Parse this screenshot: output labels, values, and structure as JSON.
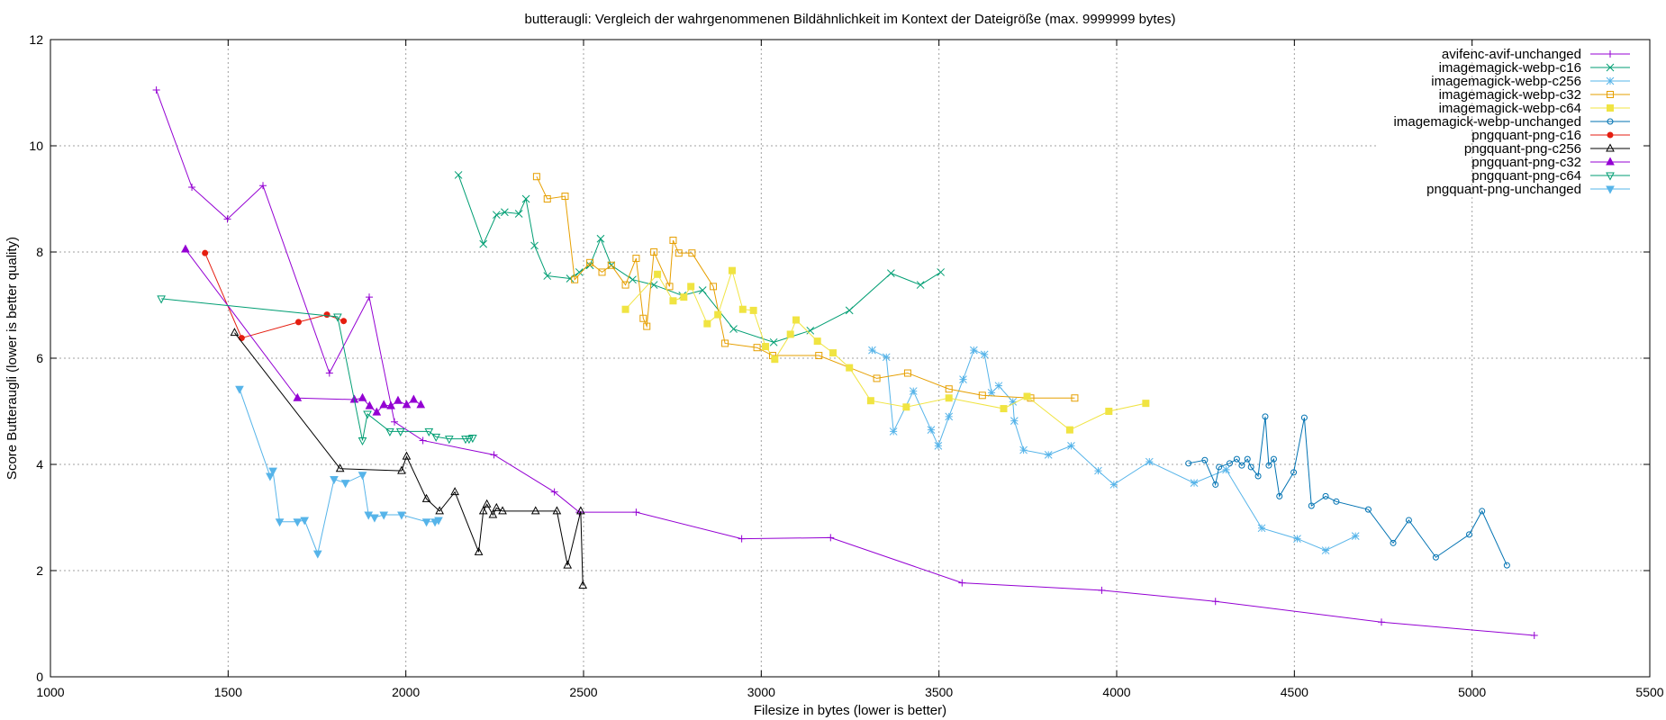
{
  "chart_data": {
    "type": "line",
    "title": "butteraugli: Vergleich der wahrgenommenen Bildähnlichkeit im Kontext der Dateigröße (max. 9999999 bytes)",
    "xlabel": "Filesize in bytes (lower is better)",
    "ylabel": "Score Butteraugli (lower is better quality)",
    "xlim": [
      1000,
      5500
    ],
    "ylim": [
      0,
      12
    ],
    "xticks": [
      1000,
      1500,
      2000,
      2500,
      3000,
      3500,
      4000,
      4500,
      5000,
      5500
    ],
    "yticks": [
      0,
      2,
      4,
      6,
      8,
      10,
      12
    ],
    "grid": true,
    "legend_position": "top-right",
    "series": [
      {
        "name": "avifenc-avif-unchanged",
        "color": "#9400d3",
        "marker": "plus",
        "points": [
          [
            1298,
            11.05
          ],
          [
            1398,
            9.22
          ],
          [
            1498,
            8.62
          ],
          [
            1598,
            9.25
          ],
          [
            1785,
            5.72
          ],
          [
            1897,
            7.15
          ],
          [
            1968,
            4.8
          ],
          [
            2048,
            4.45
          ],
          [
            2248,
            4.18
          ],
          [
            2418,
            3.48
          ],
          [
            2488,
            3.1
          ],
          [
            2648,
            3.1
          ],
          [
            2945,
            2.6
          ],
          [
            3195,
            2.62
          ],
          [
            3565,
            1.77
          ],
          [
            3958,
            1.63
          ],
          [
            4278,
            1.42
          ],
          [
            4745,
            1.03
          ],
          [
            5175,
            0.78
          ]
        ]
      },
      {
        "name": "imagemagick-webp-c16",
        "color": "#009e73",
        "marker": "x",
        "points": [
          [
            2148,
            9.45
          ],
          [
            2218,
            8.15
          ],
          [
            2255,
            8.7
          ],
          [
            2278,
            8.75
          ],
          [
            2318,
            8.72
          ],
          [
            2338,
            9.0
          ],
          [
            2362,
            8.12
          ],
          [
            2398,
            7.55
          ],
          [
            2462,
            7.5
          ],
          [
            2488,
            7.62
          ],
          [
            2518,
            7.75
          ],
          [
            2548,
            8.25
          ],
          [
            2578,
            7.75
          ],
          [
            2638,
            7.48
          ],
          [
            2698,
            7.38
          ],
          [
            2778,
            7.18
          ],
          [
            2835,
            7.28
          ],
          [
            2922,
            6.55
          ],
          [
            3035,
            6.3
          ],
          [
            3138,
            6.52
          ],
          [
            3248,
            6.9
          ],
          [
            3365,
            7.6
          ],
          [
            3448,
            7.38
          ],
          [
            3505,
            7.62
          ]
        ]
      },
      {
        "name": "imagemagick-webp-c256",
        "color": "#56b4e9",
        "marker": "star",
        "points": [
          [
            3312,
            6.15
          ],
          [
            3352,
            6.02
          ],
          [
            3372,
            4.62
          ],
          [
            3428,
            5.38
          ],
          [
            3478,
            4.65
          ],
          [
            3498,
            4.35
          ],
          [
            3528,
            4.9
          ],
          [
            3568,
            5.6
          ],
          [
            3598,
            6.15
          ],
          [
            3628,
            6.07
          ],
          [
            3648,
            5.35
          ],
          [
            3668,
            5.48
          ],
          [
            3708,
            5.18
          ],
          [
            3712,
            4.82
          ],
          [
            3738,
            4.27
          ],
          [
            3808,
            4.18
          ],
          [
            3872,
            4.35
          ],
          [
            3948,
            3.88
          ],
          [
            3992,
            3.62
          ],
          [
            4092,
            4.05
          ],
          [
            4218,
            3.65
          ],
          [
            4308,
            3.9
          ],
          [
            4408,
            2.8
          ],
          [
            4508,
            2.6
          ],
          [
            4588,
            2.38
          ],
          [
            4672,
            2.65
          ]
        ]
      },
      {
        "name": "imagemagick-webp-c32",
        "color": "#e69f00",
        "marker": "square",
        "points": [
          [
            2368,
            9.42
          ],
          [
            2398,
            9.0
          ],
          [
            2448,
            9.05
          ],
          [
            2475,
            7.48
          ],
          [
            2518,
            7.8
          ],
          [
            2552,
            7.62
          ],
          [
            2578,
            7.75
          ],
          [
            2618,
            7.38
          ],
          [
            2648,
            7.88
          ],
          [
            2668,
            6.75
          ],
          [
            2678,
            6.6
          ],
          [
            2698,
            8.0
          ],
          [
            2742,
            7.35
          ],
          [
            2752,
            8.22
          ],
          [
            2768,
            7.98
          ],
          [
            2805,
            7.98
          ],
          [
            2865,
            7.35
          ],
          [
            2898,
            6.28
          ],
          [
            2988,
            6.2
          ],
          [
            3032,
            6.05
          ],
          [
            3162,
            6.05
          ],
          [
            3325,
            5.62
          ],
          [
            3412,
            5.72
          ],
          [
            3528,
            5.42
          ],
          [
            3622,
            5.3
          ],
          [
            3758,
            5.25
          ],
          [
            3882,
            5.25
          ]
        ]
      },
      {
        "name": "imagemagick-webp-c64",
        "color": "#f0e442",
        "marker": "square-filled",
        "points": [
          [
            2618,
            6.92
          ],
          [
            2708,
            7.58
          ],
          [
            2752,
            7.08
          ],
          [
            2782,
            7.15
          ],
          [
            2802,
            7.35
          ],
          [
            2848,
            6.65
          ],
          [
            2878,
            6.82
          ],
          [
            2918,
            7.65
          ],
          [
            2948,
            6.92
          ],
          [
            2978,
            6.9
          ],
          [
            3012,
            6.22
          ],
          [
            3038,
            5.98
          ],
          [
            3082,
            6.45
          ],
          [
            3098,
            6.72
          ],
          [
            3158,
            6.32
          ],
          [
            3202,
            6.1
          ],
          [
            3248,
            5.82
          ],
          [
            3308,
            5.2
          ],
          [
            3408,
            5.08
          ],
          [
            3528,
            5.25
          ],
          [
            3682,
            5.05
          ],
          [
            3748,
            5.28
          ],
          [
            3868,
            4.65
          ],
          [
            3978,
            5.0
          ],
          [
            4082,
            5.15
          ]
        ]
      },
      {
        "name": "imagemagick-webp-unchanged",
        "color": "#0072b2",
        "marker": "circle",
        "points": [
          [
            4202,
            4.02
          ],
          [
            4248,
            4.08
          ],
          [
            4278,
            3.62
          ],
          [
            4288,
            3.95
          ],
          [
            4318,
            4.02
          ],
          [
            4338,
            4.1
          ],
          [
            4352,
            3.98
          ],
          [
            4368,
            4.1
          ],
          [
            4378,
            3.95
          ],
          [
            4398,
            3.78
          ],
          [
            4418,
            4.9
          ],
          [
            4428,
            3.98
          ],
          [
            4442,
            4.1
          ],
          [
            4458,
            3.4
          ],
          [
            4498,
            3.85
          ],
          [
            4528,
            4.88
          ],
          [
            4548,
            3.22
          ],
          [
            4588,
            3.4
          ],
          [
            4618,
            3.3
          ],
          [
            4708,
            3.15
          ],
          [
            4778,
            2.52
          ],
          [
            4822,
            2.95
          ],
          [
            4898,
            2.25
          ],
          [
            4992,
            2.68
          ],
          [
            5028,
            3.12
          ],
          [
            5098,
            2.1
          ]
        ]
      },
      {
        "name": "pngquant-png-c16",
        "color": "#e51e10",
        "marker": "circle-filled",
        "points": [
          [
            1435,
            7.98
          ],
          [
            1538,
            6.38
          ],
          [
            1698,
            6.68
          ],
          [
            1778,
            6.82
          ],
          [
            1825,
            6.7
          ]
        ]
      },
      {
        "name": "pngquant-png-c256",
        "color": "#000000",
        "marker": "triangle",
        "points": [
          [
            1518,
            6.48
          ],
          [
            1815,
            3.92
          ],
          [
            1988,
            3.88
          ],
          [
            2002,
            4.15
          ],
          [
            2058,
            3.35
          ],
          [
            2095,
            3.12
          ],
          [
            2138,
            3.48
          ],
          [
            2205,
            2.35
          ],
          [
            2218,
            3.12
          ],
          [
            2228,
            3.25
          ],
          [
            2245,
            3.05
          ],
          [
            2255,
            3.18
          ],
          [
            2272,
            3.12
          ],
          [
            2365,
            3.12
          ],
          [
            2425,
            3.12
          ],
          [
            2455,
            2.1
          ],
          [
            2492,
            3.12
          ],
          [
            2498,
            1.72
          ]
        ]
      },
      {
        "name": "pngquant-png-c32",
        "color": "#9400d3",
        "marker": "triangle-filled",
        "points": [
          [
            1380,
            8.05
          ],
          [
            1695,
            5.25
          ],
          [
            1855,
            5.22
          ],
          [
            1878,
            5.25
          ],
          [
            1898,
            5.1
          ],
          [
            1918,
            4.98
          ],
          [
            1938,
            5.12
          ],
          [
            1958,
            5.1
          ],
          [
            1978,
            5.2
          ],
          [
            2002,
            5.12
          ],
          [
            2022,
            5.22
          ],
          [
            2042,
            5.12
          ]
        ]
      },
      {
        "name": "pngquant-png-c64",
        "color": "#009e73",
        "marker": "triangle-down",
        "points": [
          [
            1312,
            7.12
          ],
          [
            1808,
            6.78
          ],
          [
            1878,
            4.45
          ],
          [
            1892,
            4.95
          ],
          [
            1955,
            4.62
          ],
          [
            1985,
            4.62
          ],
          [
            2065,
            4.62
          ],
          [
            2085,
            4.52
          ],
          [
            2122,
            4.48
          ],
          [
            2168,
            4.48
          ],
          [
            2178,
            4.48
          ],
          [
            2188,
            4.5
          ]
        ]
      },
      {
        "name": "pngquant-png-unchanged",
        "color": "#56b4e9",
        "marker": "triangle-down-filled",
        "points": [
          [
            1532,
            5.42
          ],
          [
            1618,
            3.78
          ],
          [
            1626,
            3.88
          ],
          [
            1645,
            2.92
          ],
          [
            1695,
            2.92
          ],
          [
            1715,
            2.95
          ],
          [
            1752,
            2.32
          ],
          [
            1798,
            3.72
          ],
          [
            1830,
            3.65
          ],
          [
            1878,
            3.8
          ],
          [
            1895,
            3.05
          ],
          [
            1912,
            3.0
          ],
          [
            1938,
            3.05
          ],
          [
            1988,
            3.05
          ],
          [
            2058,
            2.92
          ],
          [
            2082,
            2.92
          ],
          [
            2092,
            2.95
          ]
        ]
      }
    ]
  }
}
